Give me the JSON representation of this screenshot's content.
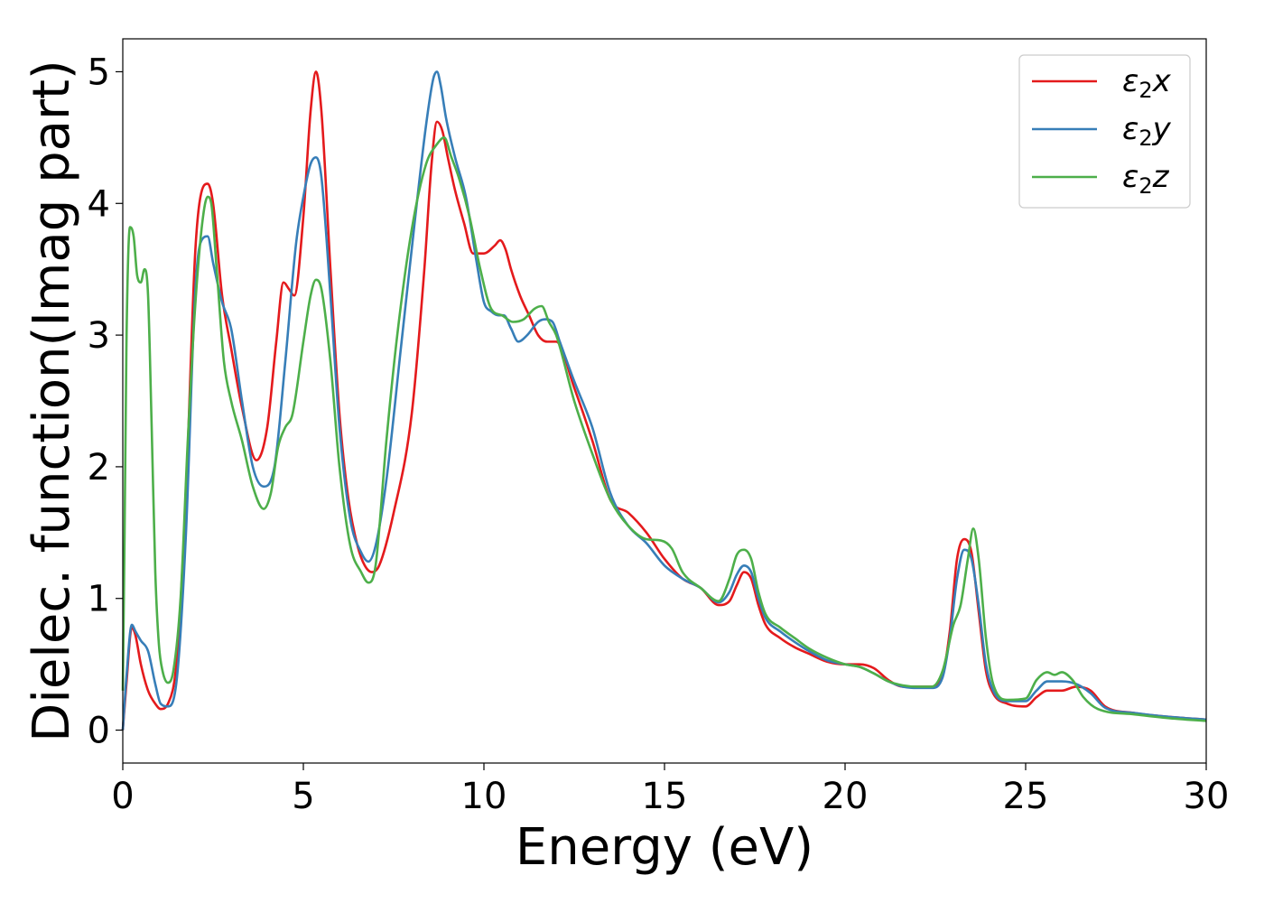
{
  "chart_data": {
    "type": "line",
    "title": "",
    "xlabel": "Energy (eV)",
    "ylabel": "Dielec. function(Imag part)",
    "xlim": [
      0,
      30
    ],
    "ylim": [
      -0.25,
      5.25
    ],
    "xticks": [
      0,
      5,
      10,
      15,
      20,
      25,
      30
    ],
    "yticks": [
      0,
      1,
      2,
      3,
      4,
      5
    ],
    "grid": false,
    "legend_position": "top-right",
    "series": [
      {
        "name": "ε2x",
        "legend_base": "ε",
        "legend_sub": "2",
        "legend_var": "x",
        "color": "#e41a1c",
        "x": [
          0,
          0.1,
          0.25,
          0.35,
          0.5,
          0.7,
          0.9,
          1.05,
          1.25,
          1.5,
          1.75,
          2.0,
          2.15,
          2.35,
          2.5,
          2.75,
          3.0,
          3.3,
          3.7,
          4.0,
          4.25,
          4.45,
          4.6,
          4.75,
          5.0,
          5.2,
          5.35,
          5.5,
          5.75,
          6.0,
          6.25,
          6.5,
          6.7,
          6.9,
          7.1,
          7.5,
          8.0,
          8.35,
          8.55,
          8.7,
          8.85,
          9.0,
          9.2,
          9.45,
          9.7,
          10.0,
          10.3,
          10.45,
          10.6,
          10.75,
          11.0,
          11.25,
          11.5,
          11.75,
          12.0,
          12.5,
          13.0,
          13.5,
          14.0,
          14.5,
          15.0,
          15.5,
          16.0,
          16.5,
          16.8,
          17.0,
          17.2,
          17.4,
          17.6,
          17.8,
          18.2,
          18.6,
          19.0,
          19.5,
          20.0,
          20.4,
          20.8,
          21.2,
          21.6,
          22.0,
          22.4,
          22.7,
          22.9,
          23.1,
          23.3,
          23.5,
          23.7,
          23.9,
          24.1,
          24.5,
          25.0,
          25.3,
          25.6,
          26.0,
          26.4,
          26.8,
          27.2,
          28.0,
          29.0,
          30.0
        ],
        "y": [
          0.0,
          0.35,
          0.78,
          0.72,
          0.5,
          0.3,
          0.2,
          0.16,
          0.2,
          0.55,
          1.8,
          3.6,
          4.05,
          4.15,
          4.0,
          3.3,
          2.9,
          2.45,
          2.05,
          2.3,
          2.95,
          3.4,
          3.35,
          3.3,
          3.9,
          4.7,
          5.0,
          4.7,
          3.5,
          2.4,
          1.75,
          1.4,
          1.25,
          1.2,
          1.25,
          1.65,
          2.4,
          3.5,
          4.3,
          4.62,
          4.55,
          4.35,
          4.1,
          3.85,
          3.62,
          3.62,
          3.68,
          3.72,
          3.65,
          3.5,
          3.3,
          3.15,
          3.0,
          2.95,
          2.95,
          2.6,
          2.2,
          1.75,
          1.65,
          1.5,
          1.3,
          1.15,
          1.08,
          0.95,
          0.98,
          1.1,
          1.2,
          1.15,
          0.95,
          0.8,
          0.7,
          0.63,
          0.58,
          0.52,
          0.5,
          0.5,
          0.47,
          0.38,
          0.33,
          0.33,
          0.33,
          0.42,
          0.75,
          1.3,
          1.45,
          1.35,
          0.9,
          0.45,
          0.28,
          0.2,
          0.18,
          0.25,
          0.3,
          0.3,
          0.33,
          0.3,
          0.18,
          0.13,
          0.1,
          0.08
        ]
      },
      {
        "name": "ε2y",
        "legend_base": "ε",
        "legend_sub": "2",
        "legend_var": "y",
        "color": "#377eb8",
        "x": [
          0,
          0.1,
          0.25,
          0.35,
          0.5,
          0.7,
          0.9,
          1.05,
          1.25,
          1.5,
          1.75,
          2.0,
          2.15,
          2.35,
          2.5,
          2.75,
          3.0,
          3.3,
          3.6,
          3.9,
          4.2,
          4.5,
          4.8,
          5.0,
          5.2,
          5.35,
          5.5,
          5.75,
          6.0,
          6.3,
          6.6,
          6.8,
          7.0,
          7.3,
          7.7,
          8.1,
          8.4,
          8.6,
          8.7,
          8.8,
          8.95,
          9.2,
          9.5,
          9.8,
          10.0,
          10.2,
          10.4,
          10.55,
          10.75,
          10.95,
          11.2,
          11.5,
          11.7,
          11.9,
          12.1,
          12.5,
          13.0,
          13.5,
          14.0,
          14.5,
          15.0,
          15.5,
          16.0,
          16.5,
          16.8,
          17.0,
          17.2,
          17.4,
          17.6,
          17.8,
          18.2,
          18.6,
          19.0,
          19.5,
          20.0,
          20.4,
          20.8,
          21.2,
          21.6,
          22.0,
          22.4,
          22.7,
          22.9,
          23.1,
          23.3,
          23.5,
          23.7,
          23.9,
          24.1,
          24.5,
          25.0,
          25.3,
          25.6,
          26.0,
          26.4,
          26.8,
          27.2,
          28.0,
          29.0,
          30.0
        ],
        "y": [
          0.0,
          0.4,
          0.8,
          0.75,
          0.68,
          0.6,
          0.35,
          0.2,
          0.18,
          0.4,
          1.5,
          3.3,
          3.7,
          3.75,
          3.55,
          3.25,
          3.05,
          2.5,
          2.0,
          1.85,
          2.0,
          2.8,
          3.7,
          4.05,
          4.3,
          4.35,
          4.2,
          3.3,
          2.3,
          1.6,
          1.35,
          1.28,
          1.4,
          1.9,
          2.9,
          3.9,
          4.6,
          4.95,
          5.0,
          4.9,
          4.65,
          4.35,
          4.05,
          3.55,
          3.25,
          3.18,
          3.15,
          3.15,
          3.05,
          2.95,
          3.0,
          3.1,
          3.12,
          3.1,
          2.95,
          2.65,
          2.3,
          1.8,
          1.55,
          1.42,
          1.25,
          1.15,
          1.08,
          0.97,
          1.05,
          1.18,
          1.25,
          1.2,
          1.0,
          0.85,
          0.75,
          0.67,
          0.6,
          0.53,
          0.5,
          0.48,
          0.43,
          0.37,
          0.33,
          0.32,
          0.32,
          0.4,
          0.7,
          1.15,
          1.37,
          1.3,
          0.95,
          0.5,
          0.3,
          0.22,
          0.22,
          0.3,
          0.37,
          0.37,
          0.35,
          0.28,
          0.17,
          0.13,
          0.1,
          0.08
        ]
      },
      {
        "name": "ε2z",
        "legend_base": "ε",
        "legend_sub": "2",
        "legend_var": "z",
        "color": "#4daf4a",
        "x": [
          0,
          0.05,
          0.1,
          0.15,
          0.2,
          0.3,
          0.4,
          0.5,
          0.6,
          0.7,
          0.8,
          0.9,
          1.0,
          1.1,
          1.25,
          1.4,
          1.6,
          1.8,
          2.0,
          2.2,
          2.35,
          2.45,
          2.6,
          2.8,
          3.0,
          3.3,
          3.6,
          3.9,
          4.1,
          4.3,
          4.5,
          4.7,
          5.0,
          5.2,
          5.35,
          5.5,
          5.75,
          6.0,
          6.3,
          6.6,
          6.8,
          7.0,
          7.3,
          7.6,
          8.0,
          8.4,
          8.7,
          8.9,
          9.1,
          9.3,
          9.6,
          9.9,
          10.2,
          10.5,
          10.8,
          11.1,
          11.4,
          11.6,
          11.8,
          12.0,
          12.5,
          13.0,
          13.5,
          14.0,
          14.5,
          14.9,
          15.2,
          15.5,
          16.0,
          16.5,
          16.8,
          17.0,
          17.2,
          17.4,
          17.6,
          17.8,
          18.2,
          18.6,
          19.0,
          19.5,
          20.0,
          20.4,
          20.8,
          21.2,
          21.6,
          22.0,
          22.4,
          22.7,
          23.0,
          23.2,
          23.4,
          23.55,
          23.7,
          23.9,
          24.1,
          24.5,
          25.0,
          25.3,
          25.6,
          25.8,
          26.0,
          26.3,
          26.6,
          27.0,
          28.0,
          29.0,
          30.0
        ],
        "y": [
          0.3,
          1.5,
          2.9,
          3.6,
          3.82,
          3.75,
          3.45,
          3.4,
          3.5,
          3.3,
          2.3,
          1.2,
          0.65,
          0.45,
          0.36,
          0.45,
          1.0,
          2.2,
          3.2,
          3.85,
          4.05,
          4.0,
          3.5,
          2.8,
          2.5,
          2.2,
          1.85,
          1.68,
          1.8,
          2.15,
          2.3,
          2.4,
          2.95,
          3.3,
          3.42,
          3.35,
          2.8,
          2.0,
          1.4,
          1.2,
          1.12,
          1.25,
          2.2,
          3.0,
          3.8,
          4.3,
          4.45,
          4.5,
          4.35,
          4.2,
          3.9,
          3.5,
          3.2,
          3.15,
          3.1,
          3.12,
          3.2,
          3.22,
          3.1,
          3.0,
          2.5,
          2.1,
          1.75,
          1.55,
          1.45,
          1.44,
          1.38,
          1.2,
          1.08,
          0.98,
          1.15,
          1.33,
          1.37,
          1.3,
          1.05,
          0.88,
          0.78,
          0.7,
          0.62,
          0.55,
          0.5,
          0.48,
          0.43,
          0.37,
          0.34,
          0.33,
          0.33,
          0.45,
          0.8,
          0.95,
          1.3,
          1.53,
          1.3,
          0.7,
          0.35,
          0.23,
          0.24,
          0.38,
          0.44,
          0.42,
          0.44,
          0.38,
          0.25,
          0.16,
          0.12,
          0.09,
          0.07
        ]
      }
    ]
  }
}
